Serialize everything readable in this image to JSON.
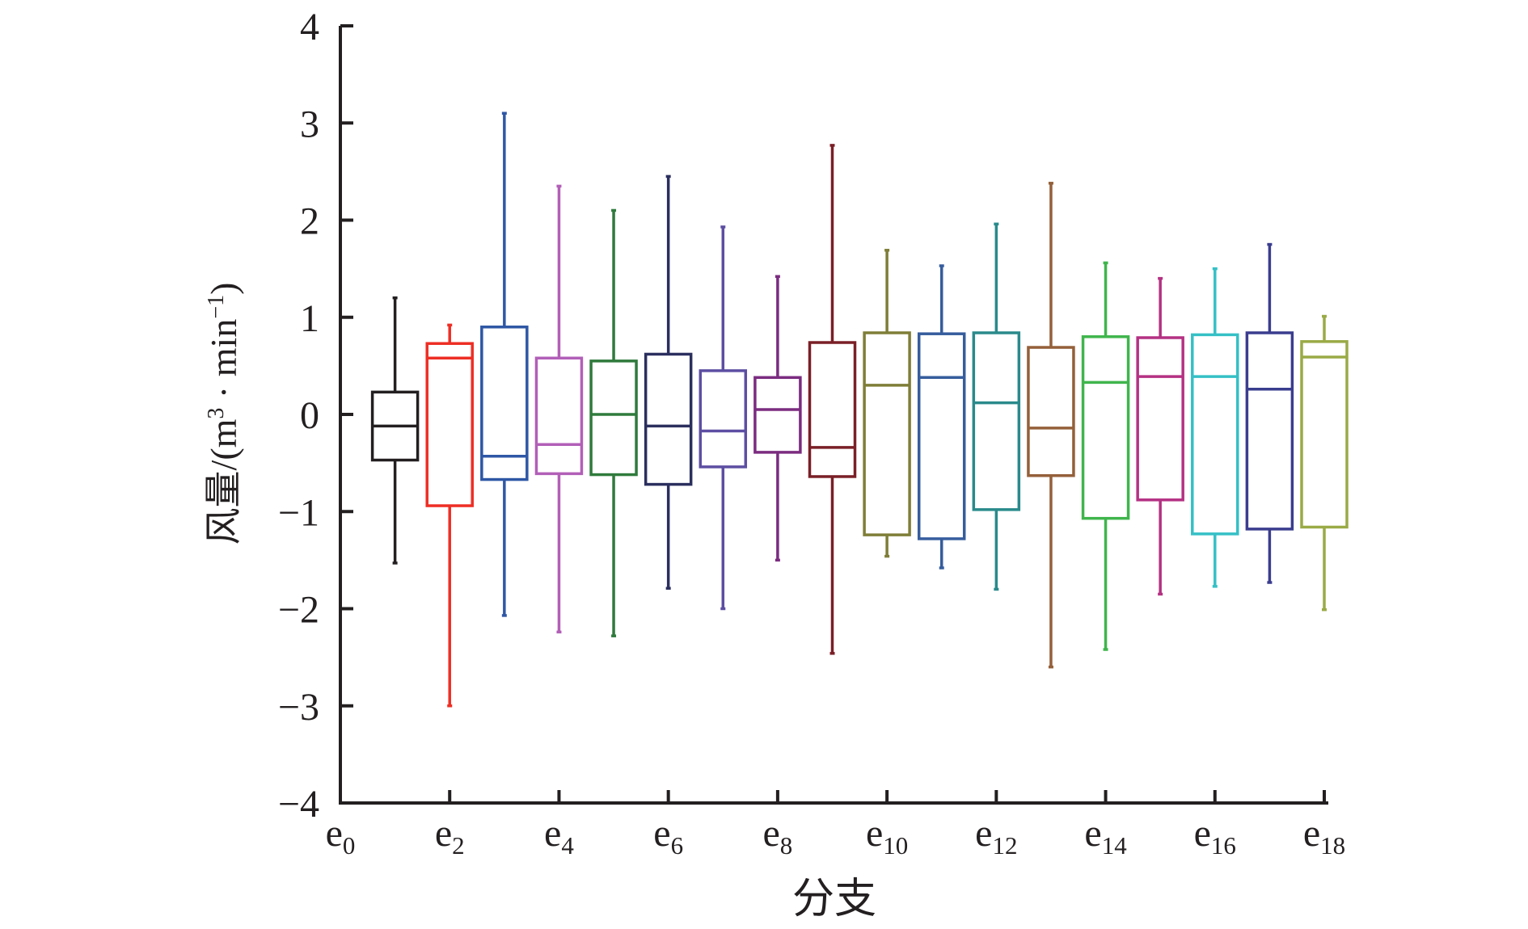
{
  "chart_data": {
    "type": "box",
    "title": "",
    "xlabel": "分支",
    "ylabel": {
      "prefix": "风量/(m",
      "sup1": "3",
      "middle": " · min",
      "sup2": "−1",
      "suffix": ")"
    },
    "ylim": [
      -4,
      4
    ],
    "yticks": [
      {
        "value": 4,
        "label": "4"
      },
      {
        "value": 3,
        "label": "3"
      },
      {
        "value": 2,
        "label": "2"
      },
      {
        "value": 1,
        "label": "1"
      },
      {
        "value": 0,
        "label": "0"
      },
      {
        "value": -1,
        "label": "−1"
      },
      {
        "value": -2,
        "label": "−2"
      },
      {
        "value": -3,
        "label": "−3"
      },
      {
        "value": -4,
        "label": "−4"
      }
    ],
    "xlim": [
      0,
      18
    ],
    "xticks": [
      {
        "pos": 0,
        "base": "e",
        "sub": "0"
      },
      {
        "pos": 2,
        "base": "e",
        "sub": "2"
      },
      {
        "pos": 4,
        "base": "e",
        "sub": "4"
      },
      {
        "pos": 6,
        "base": "e",
        "sub": "6"
      },
      {
        "pos": 8,
        "base": "e",
        "sub": "8"
      },
      {
        "pos": 10,
        "base": "e",
        "sub": "10"
      },
      {
        "pos": 12,
        "base": "e",
        "sub": "12"
      },
      {
        "pos": 14,
        "base": "e",
        "sub": "14"
      },
      {
        "pos": 16,
        "base": "e",
        "sub": "16"
      },
      {
        "pos": 18,
        "base": "e",
        "sub": "18"
      }
    ],
    "boxes": [
      {
        "pos": 1,
        "min": -1.53,
        "q1": -0.47,
        "median": -0.12,
        "q3": 0.23,
        "max": 1.2,
        "color": "#231f20"
      },
      {
        "pos": 2,
        "min": -3.0,
        "q1": -0.94,
        "median": 0.58,
        "q3": 0.73,
        "max": 0.92,
        "color": "#ee2e24"
      },
      {
        "pos": 3,
        "min": -2.07,
        "q1": -0.67,
        "median": -0.43,
        "q3": 0.9,
        "max": 3.1,
        "color": "#2e57a5"
      },
      {
        "pos": 4,
        "min": -2.24,
        "q1": -0.61,
        "median": -0.31,
        "q3": 0.58,
        "max": 2.35,
        "color": "#b25fb8"
      },
      {
        "pos": 5,
        "min": -2.28,
        "q1": -0.62,
        "median": 0.0,
        "q3": 0.55,
        "max": 2.1,
        "color": "#2f7a3c"
      },
      {
        "pos": 6,
        "min": -1.79,
        "q1": -0.72,
        "median": -0.12,
        "q3": 0.62,
        "max": 2.45,
        "color": "#2b2f5e"
      },
      {
        "pos": 7,
        "min": -2.0,
        "q1": -0.54,
        "median": -0.17,
        "q3": 0.45,
        "max": 1.93,
        "color": "#5d4ea2"
      },
      {
        "pos": 8,
        "min": -1.5,
        "q1": -0.39,
        "median": 0.05,
        "q3": 0.38,
        "max": 1.42,
        "color": "#7b2c80"
      },
      {
        "pos": 9,
        "min": -2.46,
        "q1": -0.64,
        "median": -0.34,
        "q3": 0.74,
        "max": 2.77,
        "color": "#7a1f26"
      },
      {
        "pos": 10,
        "min": -1.46,
        "q1": -1.24,
        "median": 0.3,
        "q3": 0.84,
        "max": 1.69,
        "color": "#7f7e38"
      },
      {
        "pos": 11,
        "min": -1.58,
        "q1": -1.28,
        "median": 0.38,
        "q3": 0.83,
        "max": 1.53,
        "color": "#365d9d"
      },
      {
        "pos": 12,
        "min": -1.8,
        "q1": -0.98,
        "median": 0.12,
        "q3": 0.84,
        "max": 1.96,
        "color": "#2a8a8b"
      },
      {
        "pos": 13,
        "min": -2.6,
        "q1": -0.63,
        "median": -0.14,
        "q3": 0.69,
        "max": 2.38,
        "color": "#94603a"
      },
      {
        "pos": 14,
        "min": -2.42,
        "q1": -1.07,
        "median": 0.33,
        "q3": 0.8,
        "max": 1.56,
        "color": "#3fb54c"
      },
      {
        "pos": 15,
        "min": -1.85,
        "q1": -0.88,
        "median": 0.39,
        "q3": 0.79,
        "max": 1.4,
        "color": "#b43183"
      },
      {
        "pos": 16,
        "min": -1.77,
        "q1": -1.23,
        "median": 0.39,
        "q3": 0.82,
        "max": 1.5,
        "color": "#35c0c6"
      },
      {
        "pos": 17,
        "min": -1.73,
        "q1": -1.18,
        "median": 0.26,
        "q3": 0.84,
        "max": 1.75,
        "color": "#3a3d8e"
      },
      {
        "pos": 18,
        "min": -2.01,
        "q1": -1.16,
        "median": 0.59,
        "q3": 0.75,
        "max": 1.01,
        "color": "#9aaa46"
      }
    ]
  }
}
